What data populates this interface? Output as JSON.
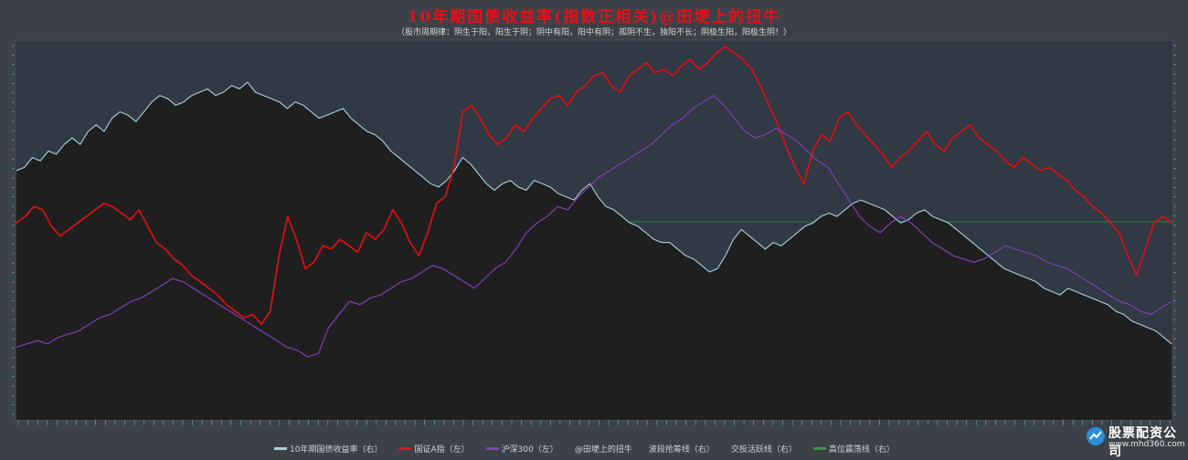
{
  "chart_data": {
    "type": "line",
    "title": "10年期国债收益率(指数正相关)@田埂上的扭牛",
    "subtitle": "（股市周期律：阴生于阳，阳生于阴；阴中有阳，阳中有阴；孤阴不生，独阳不长；阴极生阳，阳极生阴！）",
    "series": [
      {
        "name": "10年期国债收益率（右）",
        "color": "#a8d4dc",
        "fill": "#1f1f1f",
        "values": [
          74,
          75,
          78,
          77,
          80,
          79,
          82,
          84,
          82,
          86,
          88,
          86,
          90,
          92,
          91,
          89,
          92,
          95,
          97,
          96,
          94,
          95,
          97,
          98,
          99,
          97,
          98,
          100,
          99,
          101,
          98,
          97,
          96,
          95,
          93,
          95,
          94,
          92,
          90,
          91,
          92,
          93,
          90,
          88,
          86,
          85,
          83,
          80,
          78,
          76,
          74,
          72,
          70,
          69,
          71,
          74,
          78,
          76,
          73,
          70,
          68,
          70,
          71,
          69,
          68,
          71,
          70,
          69,
          67,
          66,
          65,
          68,
          70,
          66,
          63,
          62,
          60,
          58,
          57,
          55,
          53,
          52,
          52,
          50,
          48,
          47,
          45,
          43,
          44,
          48,
          53,
          56,
          54,
          52,
          50,
          52,
          51,
          53,
          55,
          57,
          58,
          60,
          61,
          60,
          62,
          64,
          65,
          64,
          63,
          62,
          60,
          58,
          59,
          61,
          62,
          60,
          59,
          58,
          56,
          54,
          52,
          50,
          48,
          46,
          44,
          43,
          42,
          41,
          40,
          38,
          37,
          36,
          38,
          37,
          36,
          35,
          34,
          33,
          31,
          30,
          28,
          27,
          26,
          25,
          23,
          21
        ]
      },
      {
        "name": "国证A指（左）",
        "color": "#e61010",
        "values": [
          58,
          60,
          63,
          62,
          57,
          54,
          56,
          58,
          60,
          62,
          64,
          63,
          61,
          59,
          62,
          57,
          52,
          50,
          47,
          45,
          42,
          40,
          38,
          36,
          33,
          31,
          29,
          30,
          27,
          31,
          48,
          60,
          53,
          44,
          46,
          51,
          50,
          53,
          51,
          49,
          55,
          53,
          56,
          62,
          58,
          52,
          48,
          55,
          64,
          66,
          75,
          92,
          94,
          90,
          85,
          82,
          84,
          88,
          86,
          90,
          93,
          96,
          97,
          94,
          98,
          100,
          103,
          104,
          100,
          98,
          103,
          105,
          107,
          104,
          105,
          103,
          106,
          108,
          105,
          107,
          110,
          112,
          110,
          108,
          105,
          100,
          94,
          88,
          81,
          75,
          70,
          80,
          85,
          83,
          90,
          92,
          88,
          85,
          82,
          79,
          75,
          78,
          80,
          83,
          86,
          82,
          80,
          84,
          86,
          88,
          84,
          82,
          80,
          77,
          75,
          78,
          76,
          74,
          75,
          73,
          71,
          68,
          66,
          63,
          61,
          58,
          55,
          48,
          42,
          50,
          58,
          60,
          58
        ]
      },
      {
        "name": "沪深300（左）",
        "color": "#8a3fc0",
        "values": [
          20,
          21,
          22,
          21,
          23,
          24,
          25,
          27,
          29,
          30,
          32,
          34,
          35,
          37,
          39,
          41,
          40,
          38,
          36,
          34,
          32,
          30,
          28,
          26,
          24,
          22,
          20,
          19,
          17,
          18,
          26,
          30,
          34,
          33,
          35,
          36,
          38,
          40,
          41,
          43,
          45,
          44,
          42,
          40,
          38,
          41,
          44,
          46,
          50,
          55,
          58,
          60,
          63,
          62,
          66,
          69,
          72,
          74,
          76,
          78,
          80,
          82,
          85,
          88,
          90,
          93,
          95,
          97,
          94,
          90,
          86,
          84,
          85,
          87,
          85,
          83,
          80,
          77,
          75,
          70,
          65,
          60,
          57,
          55,
          58,
          60,
          58,
          55,
          52,
          50,
          48,
          47,
          46,
          47,
          49,
          51,
          50,
          49,
          48,
          46,
          45,
          44,
          42,
          40,
          38,
          36,
          34,
          33,
          31,
          30,
          32,
          34
        ]
      }
    ],
    "reference_lines": [
      {
        "name": "波段抢筹线（右）",
        "color": "#d21414"
      },
      {
        "name": "高位震荡线（右）",
        "color": "#2e9c3e"
      }
    ],
    "legend": [
      {
        "label": "10年期国债收益率（右）",
        "color": "#a8d4dc"
      },
      {
        "label": "国证A指（左）",
        "color": "#e61010"
      },
      {
        "label": "沪深300（左）",
        "color": "#8a3fc0"
      },
      {
        "label": "@田埂上的扭牛",
        "color": ""
      },
      {
        "label": "波段抢筹线（右）",
        "color": ""
      },
      {
        "label": "交投活跃线（右）",
        "color": ""
      },
      {
        "label": "高位震荡线（右）",
        "color": "#2e9c3e"
      }
    ],
    "grid": false,
    "legend_position": "bottom"
  },
  "watermark": {
    "name": "股票配资公司",
    "url": "www.mhd360.com"
  }
}
